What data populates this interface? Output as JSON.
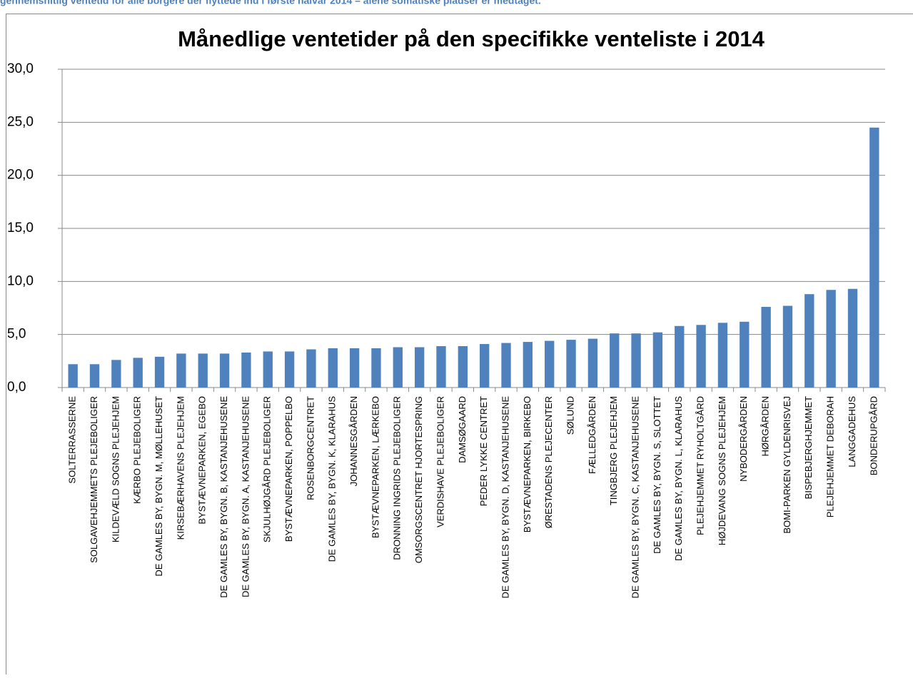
{
  "header": {
    "caption": "gennemsnitlig ventetid for alle borgere der flyttede ind i første halvår 2014 – alene somatiske pladser er medtaget."
  },
  "chart_data": {
    "type": "bar",
    "title": "Månedlige ventetider på den specifikke venteliste i 2014",
    "color": "#4f81bd",
    "grid": true,
    "categories": [
      "SOLTERRASSERNE",
      "SOLGAVEHJEMMETS PLEJEBOLIGER",
      "KILDEVÆLD SOGNS PLEJEHJEM",
      "KÆRBO PLEJEBOLIGER",
      "DE GAMLES BY, BYGN. M, MØLLEHUSET",
      "KIRSEBÆRHAVENS PLEJEHJEM",
      "BYSTÆVNEPARKEN, EGEBO",
      "DE GAMLES BY, BYGN. B, KASTANJEHUSENE",
      "DE GAMLES BY, BYGN. A, KASTANJEHUSENE",
      "SKJULHØJGÅRD PLEJEBOLIGER",
      "BYSTÆVNEPARKEN, POPPELBO",
      "ROSENBORGCENTRET",
      "DE GAMLES BY, BYGN. K, KLARAHUS",
      "JOHANNESGÅRDEN",
      "BYSTÆVNEPARKEN, LÆRKEBO",
      "DRONNING INGRIDS PLEJEBOLIGER",
      "OMSORGSCENTRET HJORTESPRING",
      "VERDISHAVE PLEJEBOLIGER",
      "DAMSØGAARD",
      "PEDER LYKKE CENTRET",
      "DE GAMLES BY, BYGN. D, KASTANJEHUSENE",
      "BYSTÆVNEPARKEN, BIRKEBO",
      "ØRESTADENS PLEJECENTER",
      "SØLUND",
      "FÆLLEDGÅRDEN",
      "TINGBJERG PLEJEHJEM",
      "DE GAMLES BY, BYGN. C, KASTANJEHUSENE",
      "DE GAMLES BY, BYGN. S, SLOTTET",
      "DE GAMLES BY, BYGN. L, KLARAHUS",
      "PLEJEHJEMMET RYHOLTGÅRD",
      "HØJDEVANG SOGNS PLEJEHJEM",
      "NYBODERGÅRDEN",
      "HØRGÅRDEN",
      "BOMI-PARKEN GYLDENRISVEJ",
      "BISPEBJERGHJEMMET",
      "PLEJEHJEMMET DEBORAH",
      "LANGGADEHUS",
      "BONDERUPGÅRD"
    ],
    "values": [
      2.2,
      2.2,
      2.6,
      2.8,
      2.9,
      3.2,
      3.2,
      3.2,
      3.3,
      3.4,
      3.4,
      3.6,
      3.7,
      3.7,
      3.7,
      3.8,
      3.8,
      3.9,
      3.9,
      4.1,
      4.2,
      4.3,
      4.4,
      4.5,
      4.6,
      5.1,
      5.1,
      5.2,
      5.8,
      5.9,
      6.1,
      6.2,
      7.6,
      7.7,
      8.8,
      9.2,
      9.3,
      24.5
    ],
    "ylim": [
      0,
      30
    ],
    "yticks": [
      {
        "value": 0,
        "label": "0,0"
      },
      {
        "value": 5,
        "label": "5,0"
      },
      {
        "value": 10,
        "label": "10,0"
      },
      {
        "value": 15,
        "label": "15,0"
      },
      {
        "value": 20,
        "label": "20,0"
      },
      {
        "value": 25,
        "label": "25,0"
      },
      {
        "value": 30,
        "label": "30,0"
      }
    ]
  }
}
